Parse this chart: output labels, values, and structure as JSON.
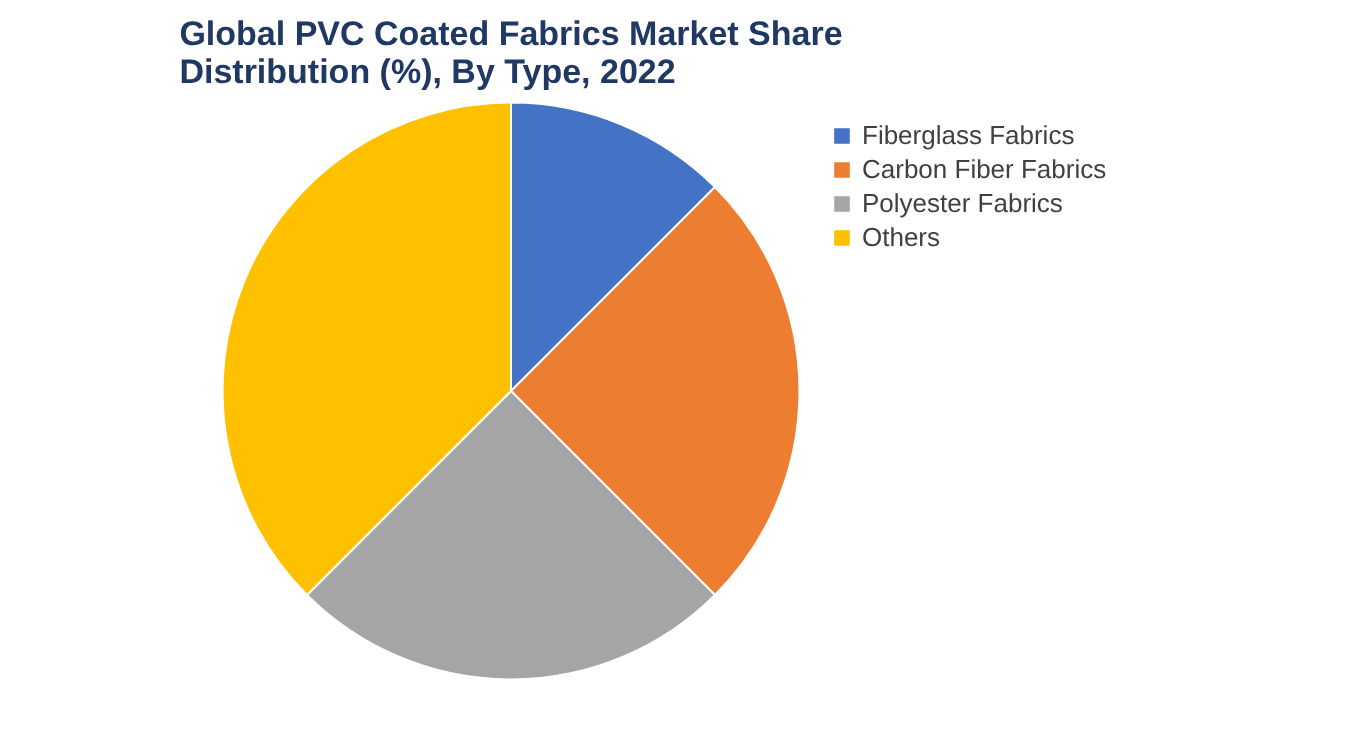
{
  "chart_data": {
    "type": "pie",
    "title": "Global PVC Coated Fabrics Market Share Distribution (%), By Type, 2022",
    "categories": [
      "Fiberglass Fabrics",
      "Carbon Fiber Fabrics",
      "Polyester Fabrics",
      "Others"
    ],
    "values": [
      12.5,
      25,
      25,
      37.5
    ],
    "colors": [
      "#4472c4",
      "#ed7d31",
      "#a5a5a5",
      "#ffc000"
    ],
    "legend": "right"
  }
}
